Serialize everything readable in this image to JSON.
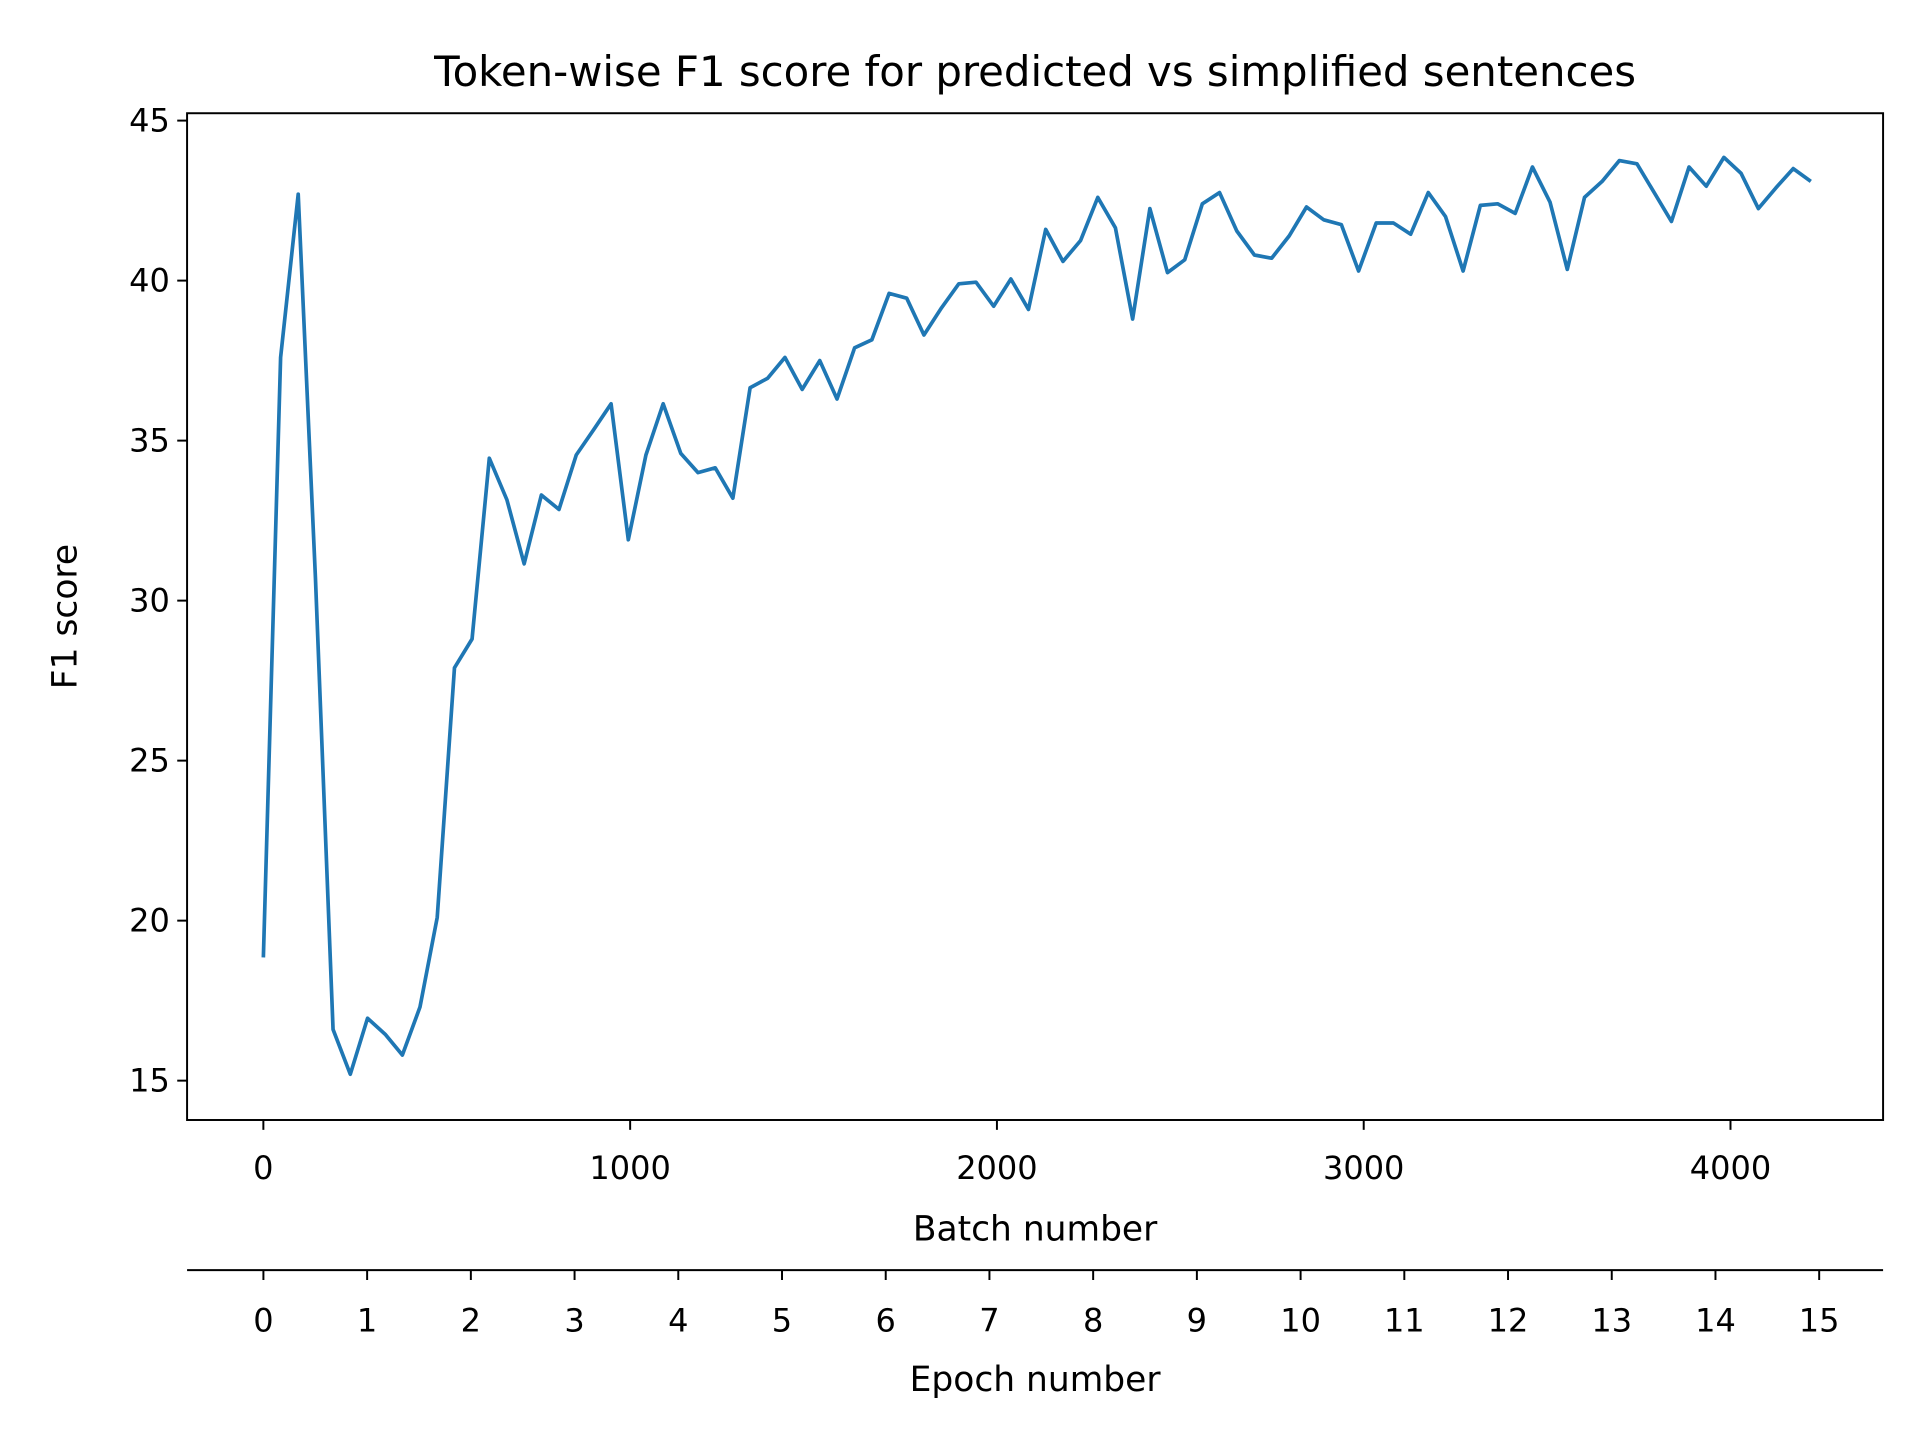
{
  "chart_data": {
    "type": "line",
    "title": "Token-wise F1 score for predicted vs simplified sentences",
    "xlabel": "Batch number",
    "ylabel": "F1 score",
    "x2label": "Epoch number",
    "color": "#1f77b4",
    "x": [
      0,
      47,
      95,
      142,
      190,
      237,
      284,
      332,
      379,
      427,
      474,
      521,
      569,
      616,
      664,
      711,
      758,
      806,
      853,
      901,
      948,
      995,
      1043,
      1090,
      1138,
      1185,
      1232,
      1280,
      1327,
      1375,
      1422,
      1469,
      1517,
      1564,
      1612,
      1659,
      1706,
      1754,
      1801,
      1849,
      1896,
      1943,
      1991,
      2038,
      2086,
      2133,
      2180,
      2228,
      2275,
      2323,
      2370,
      2417,
      2465,
      2512,
      2560,
      2607,
      2654,
      2702,
      2749,
      2797,
      2844,
      2891,
      2939,
      2986,
      3034,
      3081,
      3128,
      3176,
      3223,
      3271,
      3318,
      3365,
      3413,
      3460,
      3508,
      3555,
      3602,
      3650,
      3697,
      3745,
      3792,
      3839,
      3887,
      3934,
      3982,
      4029,
      4076,
      4124,
      4171,
      4219
    ],
    "values": [
      18.85,
      37.6,
      42.7,
      30.7,
      16.6,
      15.2,
      16.95,
      16.45,
      15.8,
      17.3,
      20.1,
      27.9,
      28.8,
      34.45,
      33.15,
      31.15,
      33.3,
      32.85,
      34.55,
      35.35,
      36.15,
      31.9,
      34.55,
      36.15,
      34.6,
      34.0,
      34.15,
      33.2,
      36.65,
      36.95,
      37.6,
      36.6,
      37.5,
      36.3,
      37.9,
      38.15,
      39.6,
      39.45,
      38.3,
      39.15,
      39.9,
      39.95,
      39.2,
      40.05,
      39.1,
      41.6,
      40.6,
      41.25,
      42.6,
      41.65,
      38.8,
      42.25,
      40.25,
      40.65,
      42.4,
      42.75,
      41.55,
      40.8,
      40.7,
      41.4,
      42.3,
      41.9,
      41.75,
      40.3,
      41.8,
      41.8,
      41.45,
      42.75,
      42.0,
      40.3,
      42.35,
      42.4,
      42.1,
      43.55,
      42.45,
      40.35,
      42.6,
      43.1,
      43.75,
      43.65,
      42.75,
      41.85,
      43.55,
      42.95,
      43.85,
      43.35,
      42.25,
      42.9,
      43.5,
      43.1
    ],
    "xlim": [
      -208,
      4416
    ],
    "xticks": [
      0,
      1000,
      2000,
      3000,
      4000
    ],
    "ylim": [
      13.77,
      45.23
    ],
    "yticks": [
      15,
      20,
      25,
      30,
      35,
      40,
      45
    ],
    "x2lim": [
      -0.736,
      15.616
    ],
    "x2ticks": [
      0,
      1,
      2,
      3,
      4,
      5,
      6,
      7,
      8,
      9,
      10,
      11,
      12,
      13,
      14,
      15
    ]
  }
}
